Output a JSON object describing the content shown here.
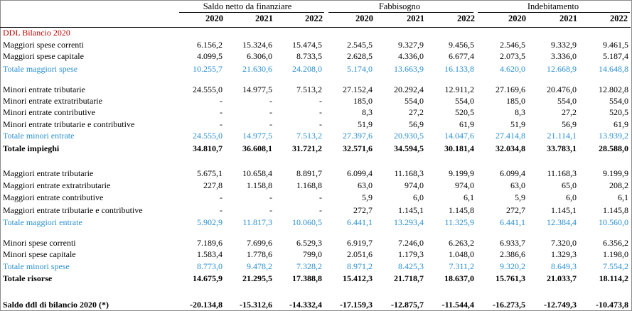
{
  "header": {
    "groups": [
      "Saldo netto da finanziare",
      "Fabbisogno",
      "Indebitamento"
    ],
    "years": [
      "2020",
      "2021",
      "2022",
      "2020",
      "2021",
      "2022",
      "2020",
      "2021",
      "2022"
    ]
  },
  "section_title": "DDL Bilancio 2020",
  "rows": [
    {
      "label": "Maggiori spese correnti",
      "values": [
        "6.156,2",
        "15.324,6",
        "15.474,5",
        "2.545,5",
        "9.327,9",
        "9.456,5",
        "2.546,5",
        "9.332,9",
        "9.461,5"
      ]
    },
    {
      "label": "Maggiori spese capitale",
      "values": [
        "4.099,5",
        "6.306,0",
        "8.733,5",
        "2.628,5",
        "4.336,0",
        "6.677,4",
        "2.073,5",
        "3.336,0",
        "5.187,4"
      ]
    },
    {
      "label": "Totale maggiori spese",
      "values": [
        "10.255,7",
        "21.630,6",
        "24.208,0",
        "5.174,0",
        "13.663,9",
        "16.133,8",
        "4.620,0",
        "12.668,9",
        "14.648,8"
      ]
    },
    {
      "label": "Minori entrate tributarie",
      "values": [
        "24.555,0",
        "14.977,5",
        "7.513,2",
        "27.152,4",
        "20.292,4",
        "12.911,2",
        "27.169,6",
        "20.476,0",
        "12.802,8"
      ]
    },
    {
      "label": "Minori entrate extratributarie",
      "values": [
        "-",
        "-",
        "-",
        "185,0",
        "554,0",
        "554,0",
        "185,0",
        "554,0",
        "554,0"
      ]
    },
    {
      "label": "Minori entrate contributive",
      "values": [
        "-",
        "-",
        "-",
        "8,3",
        "27,2",
        "520,5",
        "8,3",
        "27,2",
        "520,5"
      ]
    },
    {
      "label": "Minori entrate tributarie e contributive",
      "values": [
        "-",
        "-",
        "-",
        "51,9",
        "56,9",
        "61,9",
        "51,9",
        "56,9",
        "61,9"
      ]
    },
    {
      "label": "Totale minori entrate",
      "values": [
        "24.555,0",
        "14.977,5",
        "7.513,2",
        "27.397,6",
        "20.930,5",
        "14.047,6",
        "27.414,8",
        "21.114,1",
        "13.939,2"
      ]
    },
    {
      "label": "Totale impieghi",
      "values": [
        "34.810,7",
        "36.608,1",
        "31.721,2",
        "32.571,6",
        "34.594,5",
        "30.181,4",
        "32.034,8",
        "33.783,1",
        "28.588,0"
      ]
    },
    {
      "label": "Maggiori entrate tributarie",
      "values": [
        "5.675,1",
        "10.658,4",
        "8.891,7",
        "6.099,4",
        "11.168,3",
        "9.199,9",
        "6.099,4",
        "11.168,3",
        "9.199,9"
      ]
    },
    {
      "label": "Maggiori entrate extratributarie",
      "values": [
        "227,8",
        "1.158,8",
        "1.168,8",
        "63,0",
        "974,0",
        "974,0",
        "63,0",
        "65,0",
        "208,2"
      ]
    },
    {
      "label": "Maggiori entrate contributive",
      "values": [
        "-",
        "-",
        "-",
        "5,9",
        "6,0",
        "6,1",
        "5,9",
        "6,0",
        "6,1"
      ]
    },
    {
      "label": "Maggiori entrate tributarie e contributive",
      "values": [
        "-",
        "-",
        "-",
        "272,7",
        "1.145,1",
        "1.145,8",
        "272,7",
        "1.145,1",
        "1.145,8"
      ]
    },
    {
      "label": "Totale maggiori entrate",
      "values": [
        "5.902,9",
        "11.817,3",
        "10.060,5",
        "6.441,1",
        "13.293,4",
        "11.325,9",
        "6.441,1",
        "12.384,4",
        "10.560,0"
      ]
    },
    {
      "label": "Minori spese correnti",
      "values": [
        "7.189,6",
        "7.699,6",
        "6.529,3",
        "6.919,7",
        "7.246,0",
        "6.263,2",
        "6.933,7",
        "7.320,0",
        "6.356,2"
      ]
    },
    {
      "label": "Minori spese capitale",
      "values": [
        "1.583,4",
        "1.778,6",
        "799,0",
        "2.051,6",
        "1.179,3",
        "1.048,0",
        "2.386,6",
        "1.329,3",
        "1.198,0"
      ]
    },
    {
      "label": "Totale minori spese",
      "values": [
        "8.773,0",
        "9.478,2",
        "7.328,2",
        "8.971,2",
        "8.425,3",
        "7.311,2",
        "9.320,2",
        "8.649,3",
        "7.554,2"
      ]
    },
    {
      "label": "Totale risorse",
      "values": [
        "14.675,9",
        "21.295,5",
        "17.388,8",
        "15.412,3",
        "21.718,7",
        "18.637,0",
        "15.761,3",
        "21.033,7",
        "18.114,2"
      ]
    },
    {
      "label": "Saldo ddl di bilancio 2020 (*)",
      "values": [
        "-20.134,8",
        "-15.312,6",
        "-14.332,4",
        "-17.159,3",
        "-12.875,7",
        "-11.544,4",
        "-16.273,5",
        "-12.749,3",
        "-10.473,8"
      ]
    }
  ]
}
